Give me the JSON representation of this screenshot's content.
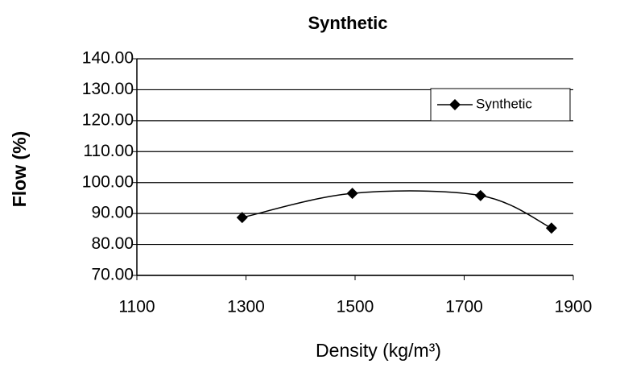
{
  "chart_data": {
    "type": "scatter-line",
    "title": "Synthetic",
    "x_label": "Density (kg/m³)",
    "y_label": "Flow (%)",
    "series": [
      {
        "name": "Synthetic",
        "color": "#000000",
        "x": [
          1293,
          1495,
          1730,
          1860
        ],
        "values": [
          88.7,
          96.5,
          95.8,
          85.3
        ]
      }
    ],
    "xlim": [
      1100,
      1900
    ],
    "xticks": [
      1100,
      1300,
      1500,
      1700,
      1900
    ],
    "ylim": [
      70,
      140
    ],
    "yticks": [
      {
        "value": 70,
        "label": "70.00"
      },
      {
        "value": 80,
        "label": "80.00"
      },
      {
        "value": 90,
        "label": "90.00"
      },
      {
        "value": 100,
        "label": "100.00"
      },
      {
        "value": 110,
        "label": "110.00"
      },
      {
        "value": 120,
        "label": "120.00"
      },
      {
        "value": 130,
        "label": "130.00"
      },
      {
        "value": 140,
        "label": "140.00"
      }
    ],
    "grid": true,
    "smooth": true,
    "legend": "upper right"
  }
}
